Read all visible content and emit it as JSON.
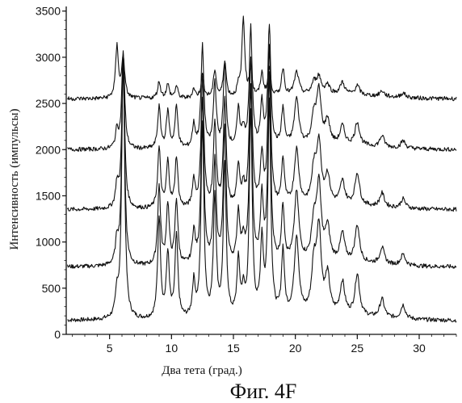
{
  "chart_data": {
    "type": "line",
    "title": "",
    "xlabel": "Два тета (град.)",
    "ylabel": "Интенсивность (импульсы)",
    "xlim": [
      1.5,
      33
    ],
    "ylim": [
      0,
      3550
    ],
    "x_ticks": [
      5,
      10,
      15,
      20,
      25,
      30
    ],
    "y_ticks": [
      0,
      500,
      1000,
      1500,
      2000,
      2500,
      3000,
      3500
    ],
    "grid": false,
    "legend": "none",
    "caption": "Фиг. 4F",
    "peaks_x": [
      5.6,
      6.1,
      9.0,
      9.7,
      10.4,
      11.8,
      12.5,
      13.5,
      14.3,
      15.4,
      15.8,
      16.4,
      17.3,
      17.9,
      19.0,
      20.1,
      21.5,
      21.9,
      22.6,
      23.8,
      25.0,
      27.0,
      28.7
    ],
    "series": [
      {
        "baseline": 150,
        "peak_heights": [
          250,
          2900,
          1100,
          700,
          900,
          380,
          2100,
          1300,
          1650,
          600,
          250,
          2200,
          800,
          2300,
          700,
          850,
          500,
          900,
          400,
          350,
          450,
          200,
          150
        ]
      },
      {
        "baseline": 730,
        "peak_heights": [
          250,
          2200,
          850,
          650,
          700,
          350,
          1800,
          1100,
          1450,
          550,
          250,
          1900,
          700,
          2000,
          600,
          750,
          400,
          800,
          350,
          300,
          400,
          180,
          120
        ]
      },
      {
        "baseline": 1350,
        "peak_heights": [
          250,
          1600,
          650,
          500,
          550,
          300,
          1400,
          900,
          1150,
          450,
          200,
          1600,
          550,
          1700,
          500,
          600,
          350,
          650,
          300,
          250,
          350,
          150,
          100
        ]
      },
      {
        "baseline": 2000,
        "peak_heights": [
          200,
          1050,
          450,
          400,
          450,
          250,
          1100,
          700,
          900,
          400,
          180,
          1300,
          450,
          1300,
          400,
          500,
          280,
          550,
          250,
          200,
          250,
          120,
          80
        ]
      },
      {
        "baseline": 2550,
        "peak_heights": [
          560,
          450,
          180,
          150,
          130,
          100,
          250,
          300,
          400,
          100,
          850,
          280,
          250,
          300,
          300,
          250,
          120,
          180,
          100,
          130,
          100,
          60,
          50
        ]
      }
    ]
  }
}
